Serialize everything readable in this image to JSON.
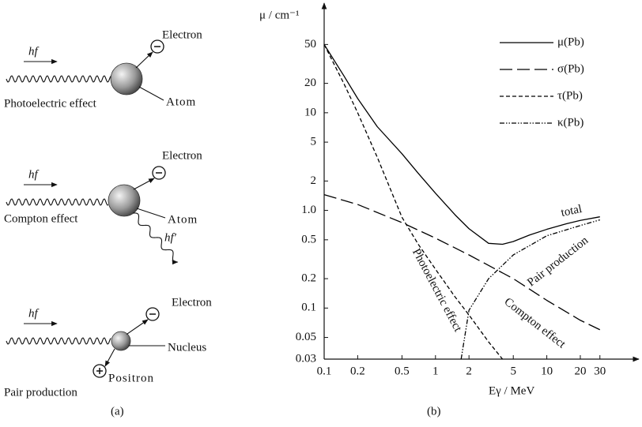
{
  "panel_a": {
    "label": "(a)",
    "processes": [
      {
        "photon": "hf",
        "electron": "Electron",
        "target": "Atom",
        "name": "Photoelectric effect"
      },
      {
        "photon": "hf",
        "electron": "Electron",
        "target": "Atom",
        "scattered": "hf′",
        "name": "Compton effect"
      },
      {
        "photon": "hf",
        "electron": "Electron",
        "target": "Nucleus",
        "positron": "Positron",
        "name": "Pair production"
      }
    ]
  },
  "chart_data": {
    "type": "line",
    "panel_label": "(b)",
    "y_label": "μ / cm⁻¹",
    "x_label": "Eγ / MeV",
    "xscale": "log",
    "yscale": "log",
    "xlim": [
      0.1,
      50
    ],
    "ylim": [
      0.03,
      110
    ],
    "xticks": [
      0.1,
      0.2,
      0.5,
      1,
      2,
      5,
      10,
      20,
      30
    ],
    "yticks": [
      0.03,
      0.05,
      0.1,
      0.2,
      0.5,
      {
        "value": 1,
        "label": "1.0"
      },
      2,
      5,
      10,
      20,
      50
    ],
    "legend": "upper right",
    "series": [
      {
        "name": "μ(Pb)",
        "color": "#000000",
        "linestyle": "solid",
        "x": [
          0.1,
          0.15,
          0.2,
          0.3,
          0.5,
          0.7,
          1,
          1.5,
          2,
          3,
          4,
          5,
          7,
          10,
          15,
          20,
          30
        ],
        "values": [
          50,
          24,
          14,
          7.2,
          3.8,
          2.4,
          1.5,
          0.9,
          0.65,
          0.46,
          0.45,
          0.48,
          0.56,
          0.64,
          0.73,
          0.79,
          0.86
        ]
      },
      {
        "name": "σ(Pb)",
        "color": "#000000",
        "linestyle": "long-dash",
        "x": [
          0.1,
          0.2,
          0.5,
          1,
          2,
          5,
          10,
          20,
          30
        ],
        "values": [
          1.45,
          1.15,
          0.75,
          0.52,
          0.35,
          0.2,
          0.12,
          0.075,
          0.06
        ]
      },
      {
        "name": "τ(Pb)",
        "color": "#000000",
        "linestyle": "dash",
        "x": [
          0.1,
          0.15,
          0.2,
          0.3,
          0.5,
          0.7,
          1,
          1.5,
          2,
          3,
          4
        ],
        "values": [
          50,
          20,
          10,
          3.5,
          0.85,
          0.45,
          0.25,
          0.13,
          0.085,
          0.045,
          0.03
        ]
      },
      {
        "name": "κ(Pb)",
        "color": "#000000",
        "linestyle": "dash-dot-dot",
        "x": [
          1.7,
          2,
          3,
          5,
          10,
          20,
          30
        ],
        "values": [
          0.03,
          0.095,
          0.2,
          0.35,
          0.55,
          0.7,
          0.8
        ]
      }
    ],
    "annotations": [
      "total",
      "Pair production",
      "Photoelectric effect",
      "Compton effect"
    ]
  }
}
